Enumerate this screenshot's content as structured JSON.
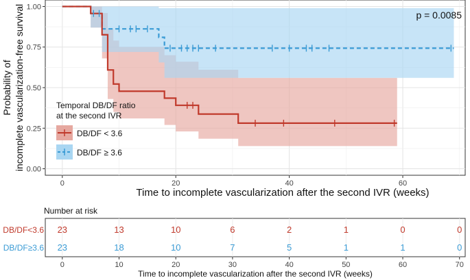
{
  "chart_data": [
    {
      "type": "line",
      "subtype": "kaplan-meier survival curve",
      "ylabel_line1": "Probability of",
      "ylabel_line2": "incomplete vascularization-free survival",
      "xlabel": "Time to incomplete vascularization after the second IVR (weeks)",
      "x_range": [
        -3,
        71
      ],
      "ylim": [
        -0.04,
        1.04
      ],
      "x_ticks": [
        0,
        20,
        40,
        60
      ],
      "y_ticks": [
        0.0,
        0.25,
        0.5,
        0.75,
        1.0
      ],
      "y_tick_labels": [
        "0.00",
        "0.25",
        "0.50",
        "0.75",
        "1.00"
      ],
      "grid": true,
      "annotation": "p = 0.0085",
      "legend": {
        "title_line1": "Temporal DB/DF ratio",
        "title_line2": "at the second IVR",
        "placement": "inside left"
      },
      "series": [
        {
          "name": "DB/DF < 3.6",
          "color": "#c0392b",
          "band_color": "#e6a8a0",
          "line_style": "solid",
          "steps": [
            [
              0,
              1.0
            ],
            [
              5,
              1.0
            ],
            [
              5,
              0.957
            ],
            [
              7,
              0.957
            ],
            [
              7,
              0.826
            ],
            [
              8,
              0.826
            ],
            [
              8,
              0.609
            ],
            [
              9,
              0.609
            ],
            [
              9,
              0.522
            ],
            [
              10,
              0.522
            ],
            [
              10,
              0.478
            ],
            [
              18,
              0.478
            ],
            [
              18,
              0.435
            ],
            [
              20,
              0.435
            ],
            [
              20,
              0.391
            ],
            [
              24,
              0.391
            ],
            [
              24,
              0.337
            ],
            [
              31,
              0.337
            ],
            [
              31,
              0.281
            ],
            [
              59,
              0.281
            ]
          ],
          "upper": [
            [
              5,
              1.0
            ],
            [
              7,
              1.0
            ],
            [
              7,
              0.96
            ],
            [
              8,
              0.96
            ],
            [
              8,
              0.86
            ],
            [
              9,
              0.86
            ],
            [
              9,
              0.79
            ],
            [
              10,
              0.79
            ],
            [
              10,
              0.75
            ],
            [
              18,
              0.75
            ],
            [
              18,
              0.7
            ],
            [
              20,
              0.7
            ],
            [
              20,
              0.66
            ],
            [
              24,
              0.66
            ],
            [
              24,
              0.61
            ],
            [
              31,
              0.61
            ],
            [
              31,
              0.56
            ],
            [
              59,
              0.56
            ]
          ],
          "lower": [
            [
              5,
              0.87
            ],
            [
              7,
              0.87
            ],
            [
              7,
              0.68
            ],
            [
              8,
              0.68
            ],
            [
              8,
              0.43
            ],
            [
              9,
              0.43
            ],
            [
              9,
              0.35
            ],
            [
              10,
              0.35
            ],
            [
              10,
              0.31
            ],
            [
              18,
              0.31
            ],
            [
              18,
              0.27
            ],
            [
              20,
              0.27
            ],
            [
              20,
              0.23
            ],
            [
              24,
              0.23
            ],
            [
              24,
              0.185
            ],
            [
              31,
              0.185
            ],
            [
              31,
              0.14
            ],
            [
              59,
              0.14
            ]
          ],
          "censor_x": [
            22,
            23,
            34,
            39,
            48,
            58.5
          ]
        },
        {
          "name": "DB/DF ≥ 3.6",
          "color": "#3a9bd5",
          "band_color": "#a9d6f2",
          "line_style": "dashed",
          "steps": [
            [
              0,
              1.0
            ],
            [
              5,
              1.0
            ],
            [
              5,
              0.957
            ],
            [
              7,
              0.957
            ],
            [
              7,
              0.862
            ],
            [
              17,
              0.862
            ],
            [
              17,
              0.81
            ],
            [
              18,
              0.81
            ],
            [
              18,
              0.743
            ],
            [
              69,
              0.743
            ]
          ],
          "upper": [
            [
              5,
              1.0
            ],
            [
              17,
              1.0
            ],
            [
              17,
              0.99
            ],
            [
              18,
              0.99
            ],
            [
              18,
              0.99
            ],
            [
              69,
              0.99
            ]
          ],
          "lower": [
            [
              5,
              0.87
            ],
            [
              7,
              0.87
            ],
            [
              7,
              0.72
            ],
            [
              17,
              0.72
            ],
            [
              17,
              0.655
            ],
            [
              18,
              0.655
            ],
            [
              18,
              0.56
            ],
            [
              69,
              0.56
            ]
          ],
          "censor_x": [
            5.5,
            6.5,
            10,
            12,
            13,
            15,
            19,
            21,
            22,
            23,
            24,
            27,
            37,
            40,
            43,
            44,
            47,
            68.5
          ]
        }
      ]
    },
    {
      "type": "table",
      "title": "Number at risk",
      "xlabel": "Time to incomplete vascularization after the second IVR (weeks)",
      "x_range": [
        -3,
        71
      ],
      "x_ticks": [
        0,
        10,
        20,
        30,
        40,
        50,
        60,
        70
      ],
      "rows": [
        {
          "label": "DB/DF<3.6",
          "color": "#c0392b",
          "values": [
            "23",
            "13",
            "10",
            "6",
            "2",
            "1",
            "0",
            "0"
          ]
        },
        {
          "label": "DB/DF≥3.6",
          "color": "#3a9bd5",
          "values": [
            "23",
            "18",
            "10",
            "7",
            "5",
            "1",
            "1",
            "0"
          ]
        }
      ]
    }
  ]
}
